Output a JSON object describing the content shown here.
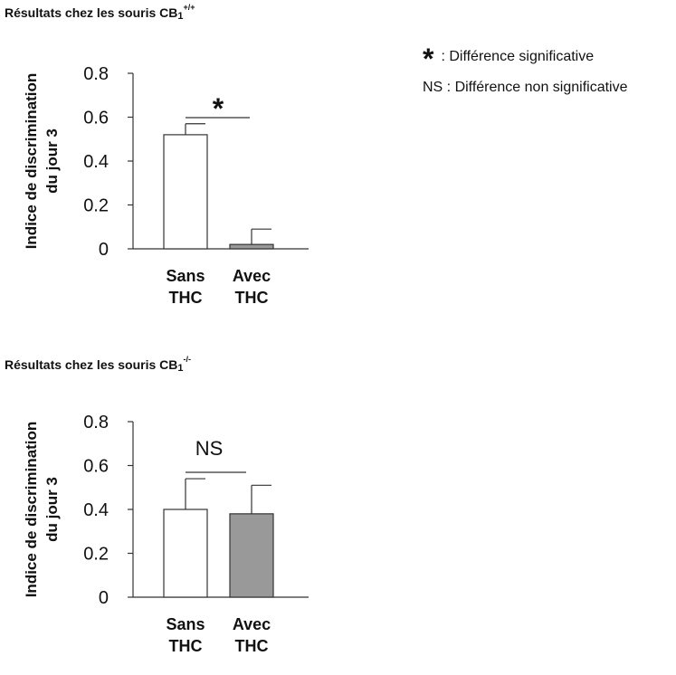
{
  "chart_data": [
    {
      "type": "bar",
      "title": "Résultats chez les souris CB",
      "title_subscript": "1",
      "title_superscript": "+/+",
      "ylabel_line1": "Indice de discrimination",
      "ylabel_line2": "du jour 3",
      "ylim": [
        0,
        0.8
      ],
      "yticks": [
        "0",
        "0.2",
        "0.4",
        "0.6",
        "0.8"
      ],
      "categories": [
        [
          "Sans",
          "THC"
        ],
        [
          "Avec",
          "THC"
        ]
      ],
      "values": [
        0.52,
        0.02
      ],
      "errors": [
        0.05,
        0.07
      ],
      "bar_colors": [
        "#ffffff",
        "#999999"
      ],
      "significance": "*"
    },
    {
      "type": "bar",
      "title": "Résultats chez les souris CB",
      "title_subscript": "1",
      "title_superscript": "-/-",
      "ylabel_line1": "Indice de discrimination",
      "ylabel_line2": "du jour 3",
      "ylim": [
        0,
        0.8
      ],
      "yticks": [
        "0",
        "0.2",
        "0.4",
        "0.6",
        "0.8"
      ],
      "categories": [
        [
          "Sans",
          "THC"
        ],
        [
          "Avec",
          "THC"
        ]
      ],
      "values": [
        0.4,
        0.38
      ],
      "errors": [
        0.14,
        0.13
      ],
      "bar_colors": [
        "#ffffff",
        "#999999"
      ],
      "significance": "NS"
    }
  ],
  "legend": {
    "star_symbol": "*",
    "star_text": ": Différence significative",
    "ns_text": "NS : Différence non significative"
  }
}
